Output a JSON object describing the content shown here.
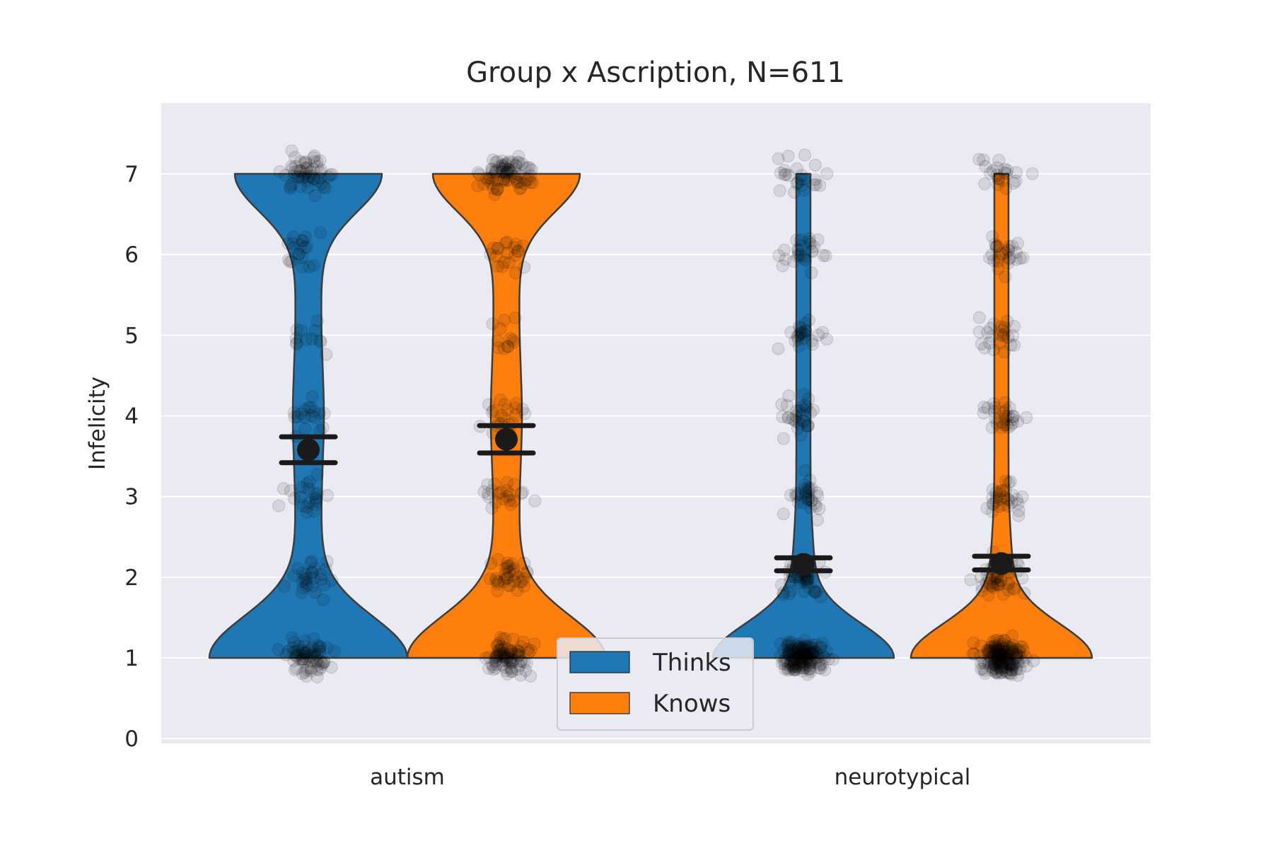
{
  "chart_data": {
    "type": "violin",
    "title": "Group x Ascription, N=611",
    "xlabel": "",
    "ylabel": "Infelicity",
    "ylim": [
      -0.05,
      7.9
    ],
    "yticks": [
      0,
      1,
      2,
      3,
      4,
      5,
      6,
      7
    ],
    "grid": true,
    "legend_position": "bottom-center",
    "categories": [
      "autism",
      "neurotypical"
    ],
    "series": [
      {
        "name": "Thinks",
        "color": "#1f77b4",
        "mean": [
          3.58,
          2.16
        ],
        "ci": [
          [
            3.42,
            3.74
          ],
          [
            2.08,
            2.24
          ]
        ]
      },
      {
        "name": "Knows",
        "color": "#ff7f0e",
        "mean": [
          3.71,
          2.17
        ],
        "ci": [
          [
            3.54,
            3.88
          ],
          [
            2.09,
            2.26
          ]
        ]
      }
    ],
    "point_counts": [
      {
        "category": "autism",
        "series": "Thinks",
        "counts": {
          "1": 70,
          "2": 28,
          "3": 22,
          "4": 18,
          "5": 12,
          "6": 20,
          "7": 55
        }
      },
      {
        "category": "autism",
        "series": "Knows",
        "counts": {
          "1": 85,
          "2": 35,
          "3": 22,
          "4": 22,
          "5": 12,
          "6": 20,
          "7": 80
        }
      },
      {
        "category": "neurotypical",
        "series": "Thinks",
        "counts": {
          "1": 160,
          "2": 45,
          "3": 30,
          "4": 30,
          "5": 24,
          "6": 26,
          "7": 24
        }
      },
      {
        "category": "neurotypical",
        "series": "Knows",
        "counts": {
          "1": 180,
          "2": 50,
          "3": 30,
          "4": 28,
          "5": 24,
          "6": 26,
          "7": 22
        }
      }
    ]
  }
}
